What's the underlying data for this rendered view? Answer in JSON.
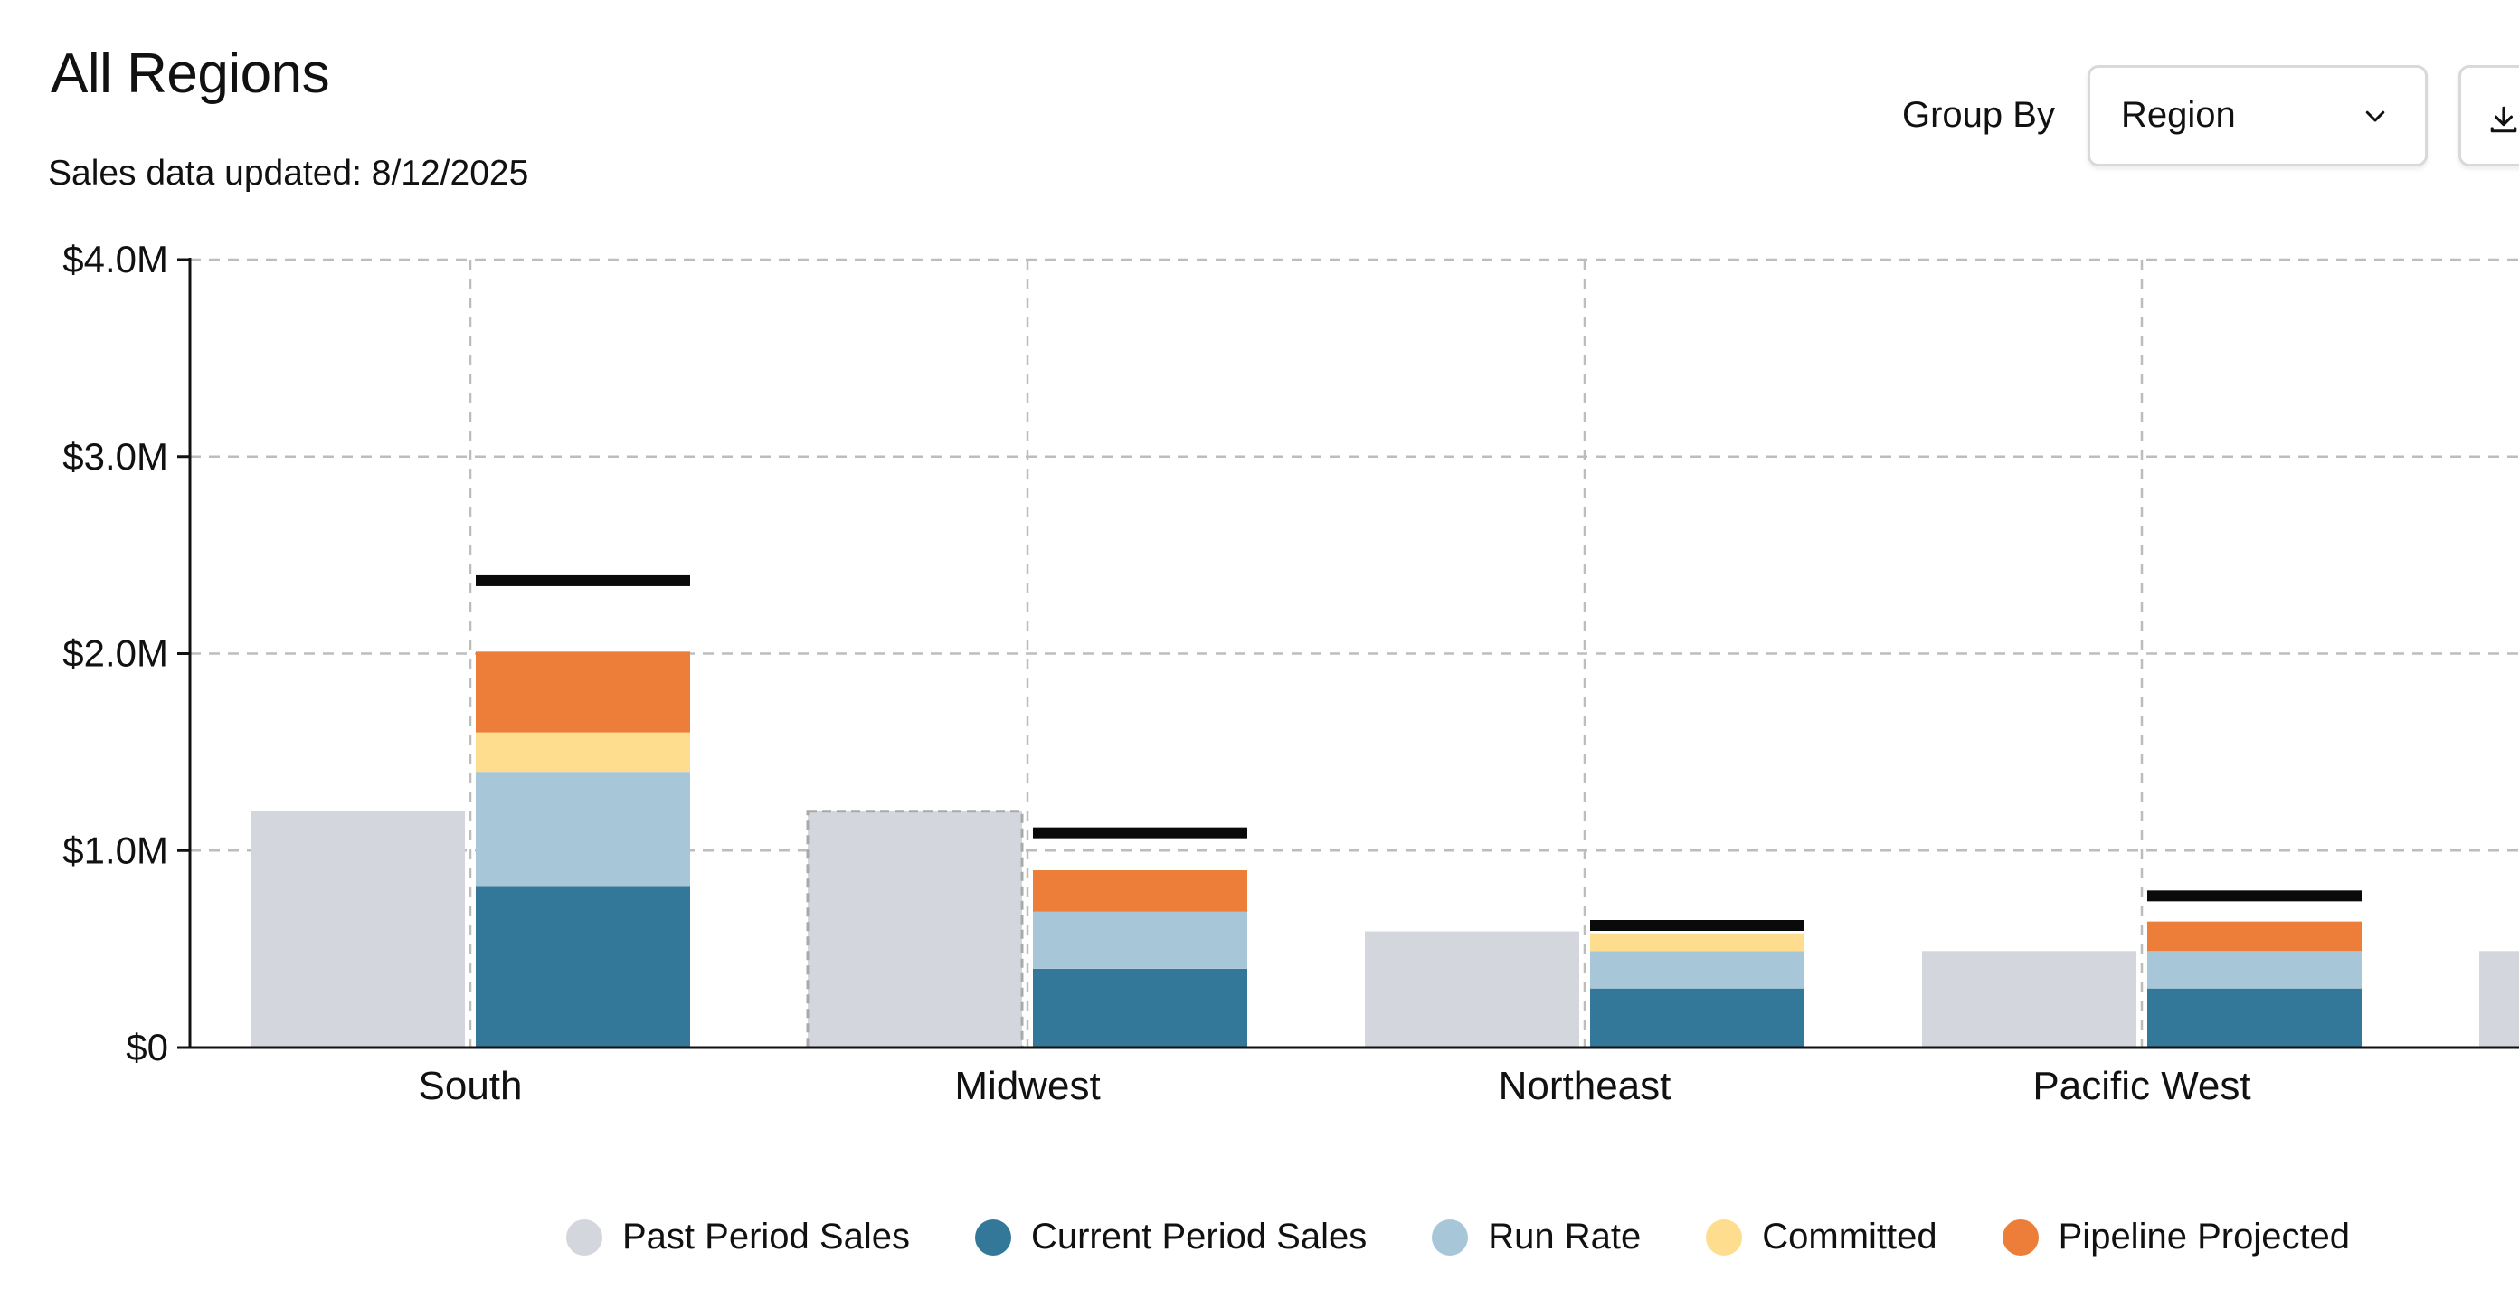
{
  "header": {
    "title": "All Regions",
    "updated": "Sales data updated: 8/12/2025"
  },
  "controls": {
    "group_by_label": "Group By",
    "group_by_value": "Region",
    "chevron_icon": "chevron-down-icon",
    "download_icon": "download-icon"
  },
  "colors": {
    "past": "#d3d6dd",
    "current": "#337899",
    "run_rate": "#a7c7d9",
    "committed": "#fede8e",
    "pipeline": "#ec7e3a",
    "target": "#0a0a0a",
    "grid": "#bdbdbd"
  },
  "chart_data": {
    "type": "bar",
    "subtype": "grouped-stacked-with-target",
    "title": "All Regions",
    "xlabel": "",
    "ylabel": "",
    "ylim": [
      0,
      4000000
    ],
    "yticks": [
      0,
      1000000,
      2000000,
      3000000,
      4000000
    ],
    "ytick_labels": [
      "$0",
      "$1.0M",
      "$2.0M",
      "$3.0M",
      "$4.0M"
    ],
    "grid": true,
    "legend_position": "bottom",
    "categories": [
      "South",
      "Midwest",
      "Northeast",
      "Pacific West",
      ""
    ],
    "series": [
      {
        "name": "Past Period Sales",
        "key": "past",
        "stack": "past",
        "values": [
          1200000,
          1200000,
          590000,
          490000,
          490000
        ]
      },
      {
        "name": "Current Period Sales",
        "key": "current",
        "stack": "current",
        "values": [
          820000,
          400000,
          300000,
          300000,
          null
        ]
      },
      {
        "name": "Run Rate",
        "key": "run_rate",
        "stack": "current",
        "values": [
          580000,
          290000,
          190000,
          190000,
          null
        ]
      },
      {
        "name": "Committed",
        "key": "committed",
        "stack": "current",
        "values": [
          200000,
          0,
          90000,
          0,
          null
        ]
      },
      {
        "name": "Pipeline Projected",
        "key": "pipeline",
        "stack": "current",
        "values": [
          410000,
          210000,
          0,
          150000,
          null
        ]
      }
    ],
    "targets": [
      2370000,
      1090000,
      620000,
      770000,
      null
    ],
    "highlighted_category": "Midwest"
  }
}
